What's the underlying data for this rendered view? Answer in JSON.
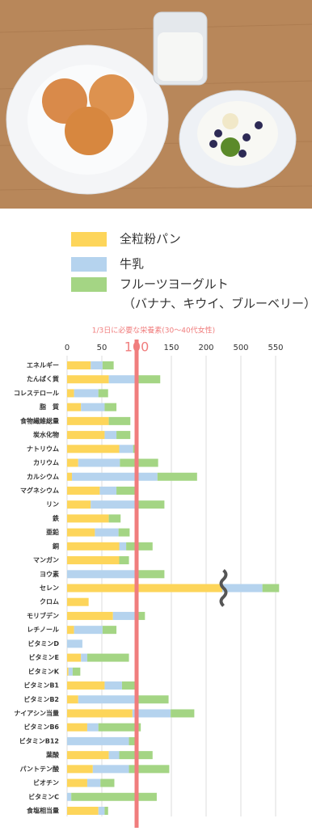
{
  "chart_data": {
    "type": "stacked-barh",
    "subtitle": "1/3日に必要な栄養素(30〜40代女性)",
    "legend_note": "（バナナ、キウイ、ブルーベリー）",
    "categories": [
      "エネルギー",
      "たんぱく質",
      "コレステロール",
      "脂　質",
      "食物繊維総量",
      "炭水化物",
      "ナトリウム",
      "カリウム",
      "カルシウム",
      "マグネシウム",
      "リン",
      "鉄",
      "亜鉛",
      "銅",
      "マンガン",
      "ヨウ素",
      "セレン",
      "クロム",
      "モリブデン",
      "レチノール",
      "ビタミンD",
      "ビタミンE",
      "ビタミンK",
      "ビタミンB1",
      "ビタミンB2",
      "ナイアシン当量",
      "ビタミンB6",
      "ビタミンB12",
      "葉酸",
      "パントテン酸",
      "ビオチン",
      "ビタミンC",
      "食塩相当量"
    ],
    "series": [
      {
        "name": "全粒粉パン",
        "color": "#fdd55a",
        "values": [
          34,
          60,
          10,
          20,
          60,
          54,
          75,
          16,
          7,
          47,
          34,
          60,
          40,
          75,
          75,
          0,
          340,
          31,
          66,
          10,
          0,
          20,
          2,
          54,
          16,
          94,
          29,
          0,
          60,
          37,
          29,
          0,
          45
        ]
      },
      {
        "name": "牛乳",
        "color": "#b5d3ee",
        "values": [
          17,
          40,
          35,
          34,
          0,
          17,
          20,
          60,
          123,
          24,
          66,
          0,
          34,
          10,
          0,
          98,
          191,
          0,
          32,
          41,
          22,
          9,
          6,
          25,
          84,
          55,
          16,
          89,
          15,
          52,
          19,
          6,
          9
        ]
      },
      {
        "name": "フルーツヨーグルト",
        "color": "#a4d584",
        "values": [
          16,
          34,
          14,
          17,
          31,
          20,
          5,
          55,
          57,
          29,
          40,
          17,
          16,
          38,
          14,
          42,
          24,
          0,
          14,
          20,
          0,
          60,
          11,
          21,
          46,
          34,
          61,
          9,
          48,
          58,
          20,
          123,
          5
        ]
      }
    ],
    "xlim": [
      0,
      560
    ],
    "xticks": [
      0,
      50,
      100,
      150,
      200,
      500,
      550
    ],
    "reference_line": 100,
    "reference_color": "#f07d7d",
    "grid": true
  }
}
